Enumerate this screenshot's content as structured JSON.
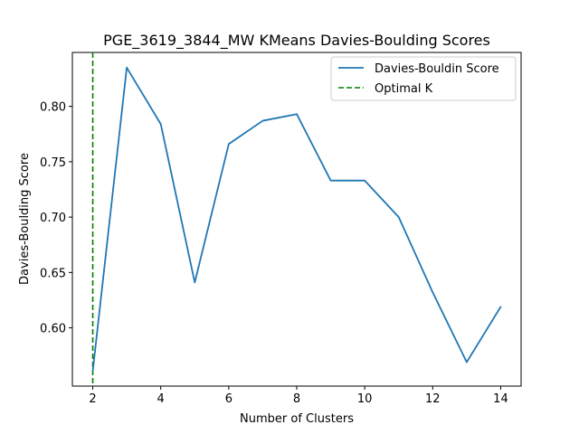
{
  "chart_data": {
    "type": "line",
    "title": "PGE_3619_3844_MW KMeans Davies-Boulding Scores",
    "xlabel": "Number of Clusters",
    "ylabel": "Davies-Boulding Score",
    "x": [
      2,
      3,
      4,
      5,
      6,
      7,
      8,
      9,
      10,
      11,
      12,
      13,
      14
    ],
    "series": [
      {
        "name": "Davies-Bouldin Score",
        "values": [
          0.561,
          0.835,
          0.784,
          0.641,
          0.766,
          0.787,
          0.793,
          0.733,
          0.733,
          0.7,
          0.632,
          0.569,
          0.619
        ],
        "color": "#1f77b4"
      }
    ],
    "optimal_k": {
      "name": "Optimal K",
      "x": 2,
      "color": "#008000",
      "style": "dashed"
    },
    "xlim": [
      1.4,
      14.6
    ],
    "ylim": [
      0.5474,
      0.8487
    ],
    "xticks": [
      2,
      4,
      6,
      8,
      10,
      12,
      14
    ],
    "xtick_labels": [
      "2",
      "4",
      "6",
      "8",
      "10",
      "12",
      "14"
    ],
    "yticks": [
      0.6,
      0.65,
      0.7,
      0.75,
      0.8
    ],
    "ytick_labels": [
      "0.60",
      "0.65",
      "0.70",
      "0.75",
      "0.80"
    ],
    "grid": false,
    "legend_position": "top-right"
  }
}
